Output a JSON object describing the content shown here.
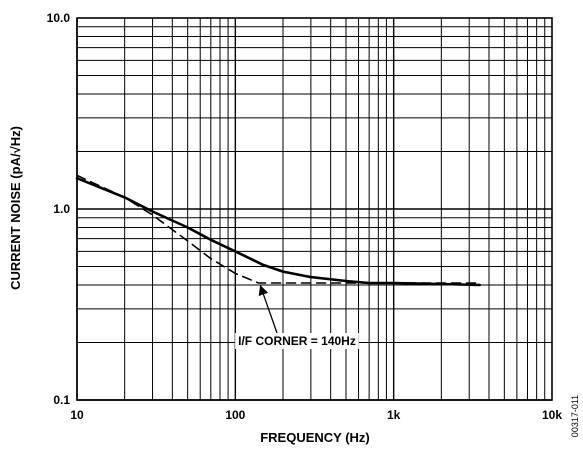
{
  "chart_data": {
    "type": "line",
    "xlabel": "FREQUENCY (Hz)",
    "ylabel": "CURRENT NOISE (pA/√Hz)",
    "x_scale": "log",
    "y_scale": "log",
    "xlim": [
      10,
      10000
    ],
    "ylim": [
      0.1,
      10
    ],
    "grid": true,
    "x_ticks": [
      {
        "value": 10,
        "label": "10"
      },
      {
        "value": 100,
        "label": "100"
      },
      {
        "value": 1000,
        "label": "1k"
      },
      {
        "value": 10000,
        "label": "10k"
      }
    ],
    "y_ticks": [
      {
        "value": 0.1,
        "label": "0.1"
      },
      {
        "value": 1,
        "label": "1.0"
      },
      {
        "value": 10,
        "label": "10.0"
      }
    ],
    "series": [
      {
        "style": "solid",
        "x": [
          10,
          20,
          30,
          50,
          70,
          100,
          150,
          200,
          300,
          500,
          700,
          1000,
          2000,
          3500
        ],
        "y": [
          1.45,
          1.15,
          0.97,
          0.8,
          0.69,
          0.6,
          0.51,
          0.47,
          0.44,
          0.42,
          0.41,
          0.41,
          0.405,
          0.4
        ]
      },
      {
        "style": "dashed",
        "x": [
          10,
          20,
          30,
          50,
          70,
          100,
          140,
          200,
          300,
          500,
          1000,
          2000,
          3500
        ],
        "y": [
          1.5,
          1.15,
          0.93,
          0.68,
          0.55,
          0.46,
          0.41,
          0.41,
          0.41,
          0.41,
          0.41,
          0.41,
          0.41
        ]
      }
    ],
    "annotations": [
      {
        "text": "I/F CORNER = 140Hz",
        "points_to": {
          "x": 140,
          "y": 0.41
        }
      }
    ],
    "figure_id": "00317-011"
  }
}
